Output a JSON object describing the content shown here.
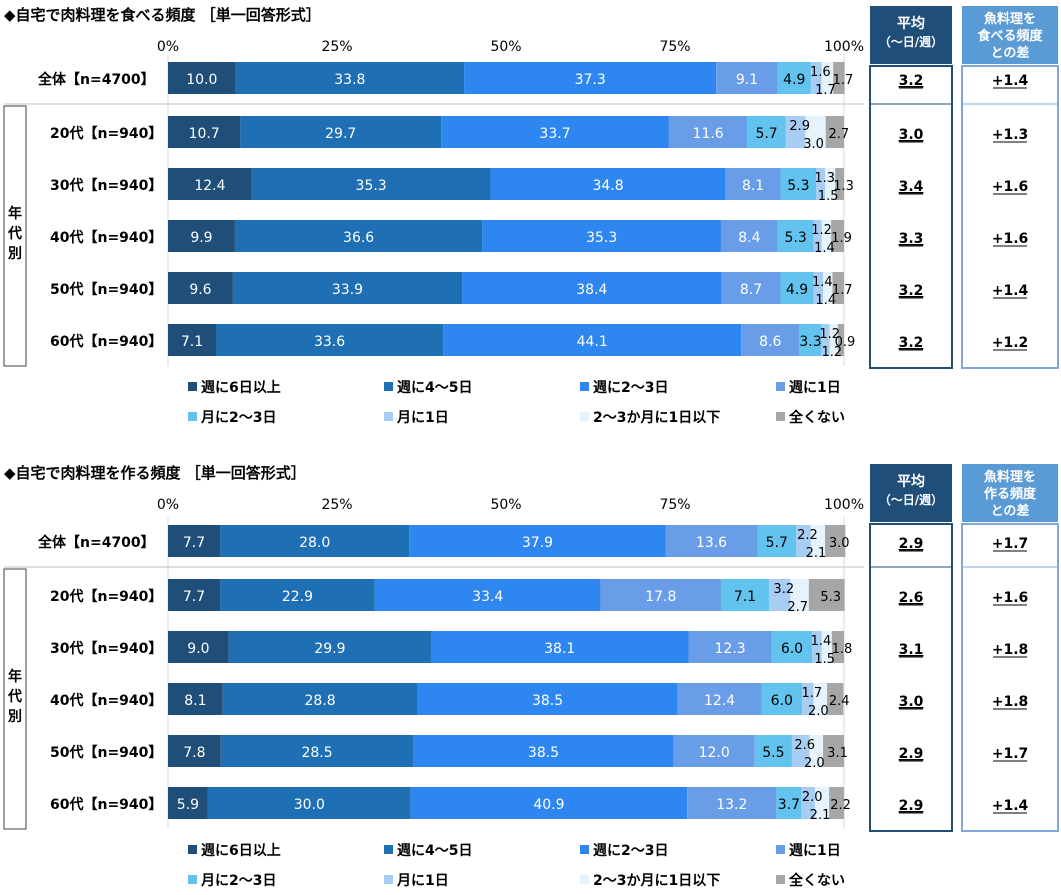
{
  "colors": {
    "segments": [
      "#1f4e79",
      "#1f6fb5",
      "#2e86f0",
      "#6a9de8",
      "#62c4ee",
      "#a8cdf3",
      "#e6f3fc",
      "#a6a6a6"
    ],
    "header_mean_bg": "#1f4e79",
    "header_diff_bg": "#5b9bd5",
    "box_mean": "#1f4e79",
    "box_diff": "#7fa8d8"
  },
  "chart_data": [
    {
      "type": "bar",
      "orientation": "horizontal-stacked-100",
      "title": "◆自宅で肉料理を食べる頻度 ［単一回答形式］",
      "ticks": [
        "0%",
        "25%",
        "50%",
        "75%",
        "100%"
      ],
      "xlim": [
        0,
        100
      ],
      "group_label": "年代別",
      "header_mean": [
        "平均",
        "（～日/週）"
      ],
      "header_diff": [
        "魚料理を",
        "食べる頻度",
        "との差"
      ],
      "legend": [
        "週に6日以上",
        "週に4～5日",
        "週に2～3日",
        "週に1日",
        "月に2～3日",
        "月に1日",
        "2～3か月に1日以下",
        "全くない"
      ],
      "rows": [
        {
          "label": "全体【n=4700】",
          "values": [
            10.0,
            33.8,
            37.3,
            9.1,
            4.9,
            1.6,
            1.7,
            1.7
          ],
          "mean": "3.2",
          "diff": "+1.4"
        },
        {
          "label": "20代【n=940】",
          "values": [
            10.7,
            29.7,
            33.7,
            11.6,
            5.7,
            2.9,
            3.0,
            2.7
          ],
          "mean": "3.0",
          "diff": "+1.3"
        },
        {
          "label": "30代【n=940】",
          "values": [
            12.4,
            35.3,
            34.8,
            8.1,
            5.3,
            1.3,
            1.5,
            1.3
          ],
          "mean": "3.4",
          "diff": "+1.6"
        },
        {
          "label": "40代【n=940】",
          "values": [
            9.9,
            36.6,
            35.3,
            8.4,
            5.3,
            1.2,
            1.4,
            1.9
          ],
          "mean": "3.3",
          "diff": "+1.6"
        },
        {
          "label": "50代【n=940】",
          "values": [
            9.6,
            33.9,
            38.4,
            8.7,
            4.9,
            1.4,
            1.4,
            1.7
          ],
          "mean": "3.2",
          "diff": "+1.4"
        },
        {
          "label": "60代【n=940】",
          "values": [
            7.1,
            33.6,
            44.1,
            8.6,
            3.3,
            1.2,
            1.2,
            0.9
          ],
          "mean": "3.2",
          "diff": "+1.2"
        }
      ]
    },
    {
      "type": "bar",
      "orientation": "horizontal-stacked-100",
      "title": "◆自宅で肉料理を作る頻度 ［単一回答形式］",
      "ticks": [
        "0%",
        "25%",
        "50%",
        "75%",
        "100%"
      ],
      "xlim": [
        0,
        100
      ],
      "group_label": "年代別",
      "header_mean": [
        "平均",
        "（～日/週）"
      ],
      "header_diff": [
        "魚料理を",
        "作る頻度",
        "との差"
      ],
      "legend": [
        "週に6日以上",
        "週に4～5日",
        "週に2～3日",
        "週に1日",
        "月に2～3日",
        "月に1日",
        "2～3か月に1日以下",
        "全くない"
      ],
      "rows": [
        {
          "label": "全体【n=4700】",
          "values": [
            7.7,
            28.0,
            37.9,
            13.6,
            5.7,
            2.2,
            2.1,
            3.0
          ],
          "mean": "2.9",
          "diff": "+1.7"
        },
        {
          "label": "20代【n=940】",
          "values": [
            7.7,
            22.9,
            33.4,
            17.8,
            7.1,
            3.2,
            2.7,
            5.3
          ],
          "mean": "2.6",
          "diff": "+1.6"
        },
        {
          "label": "30代【n=940】",
          "values": [
            9.0,
            29.9,
            38.1,
            12.3,
            6.0,
            1.4,
            1.5,
            1.8
          ],
          "mean": "3.1",
          "diff": "+1.8"
        },
        {
          "label": "40代【n=940】",
          "values": [
            8.1,
            28.8,
            38.5,
            12.4,
            6.0,
            1.7,
            2.0,
            2.4
          ],
          "mean": "3.0",
          "diff": "+1.8"
        },
        {
          "label": "50代【n=940】",
          "values": [
            7.8,
            28.5,
            38.5,
            12.0,
            5.5,
            2.6,
            2.0,
            3.1
          ],
          "mean": "2.9",
          "diff": "+1.7"
        },
        {
          "label": "60代【n=940】",
          "values": [
            5.9,
            30.0,
            40.9,
            13.2,
            3.7,
            2.0,
            2.1,
            2.2
          ],
          "mean": "2.9",
          "diff": "+1.4"
        }
      ]
    }
  ]
}
